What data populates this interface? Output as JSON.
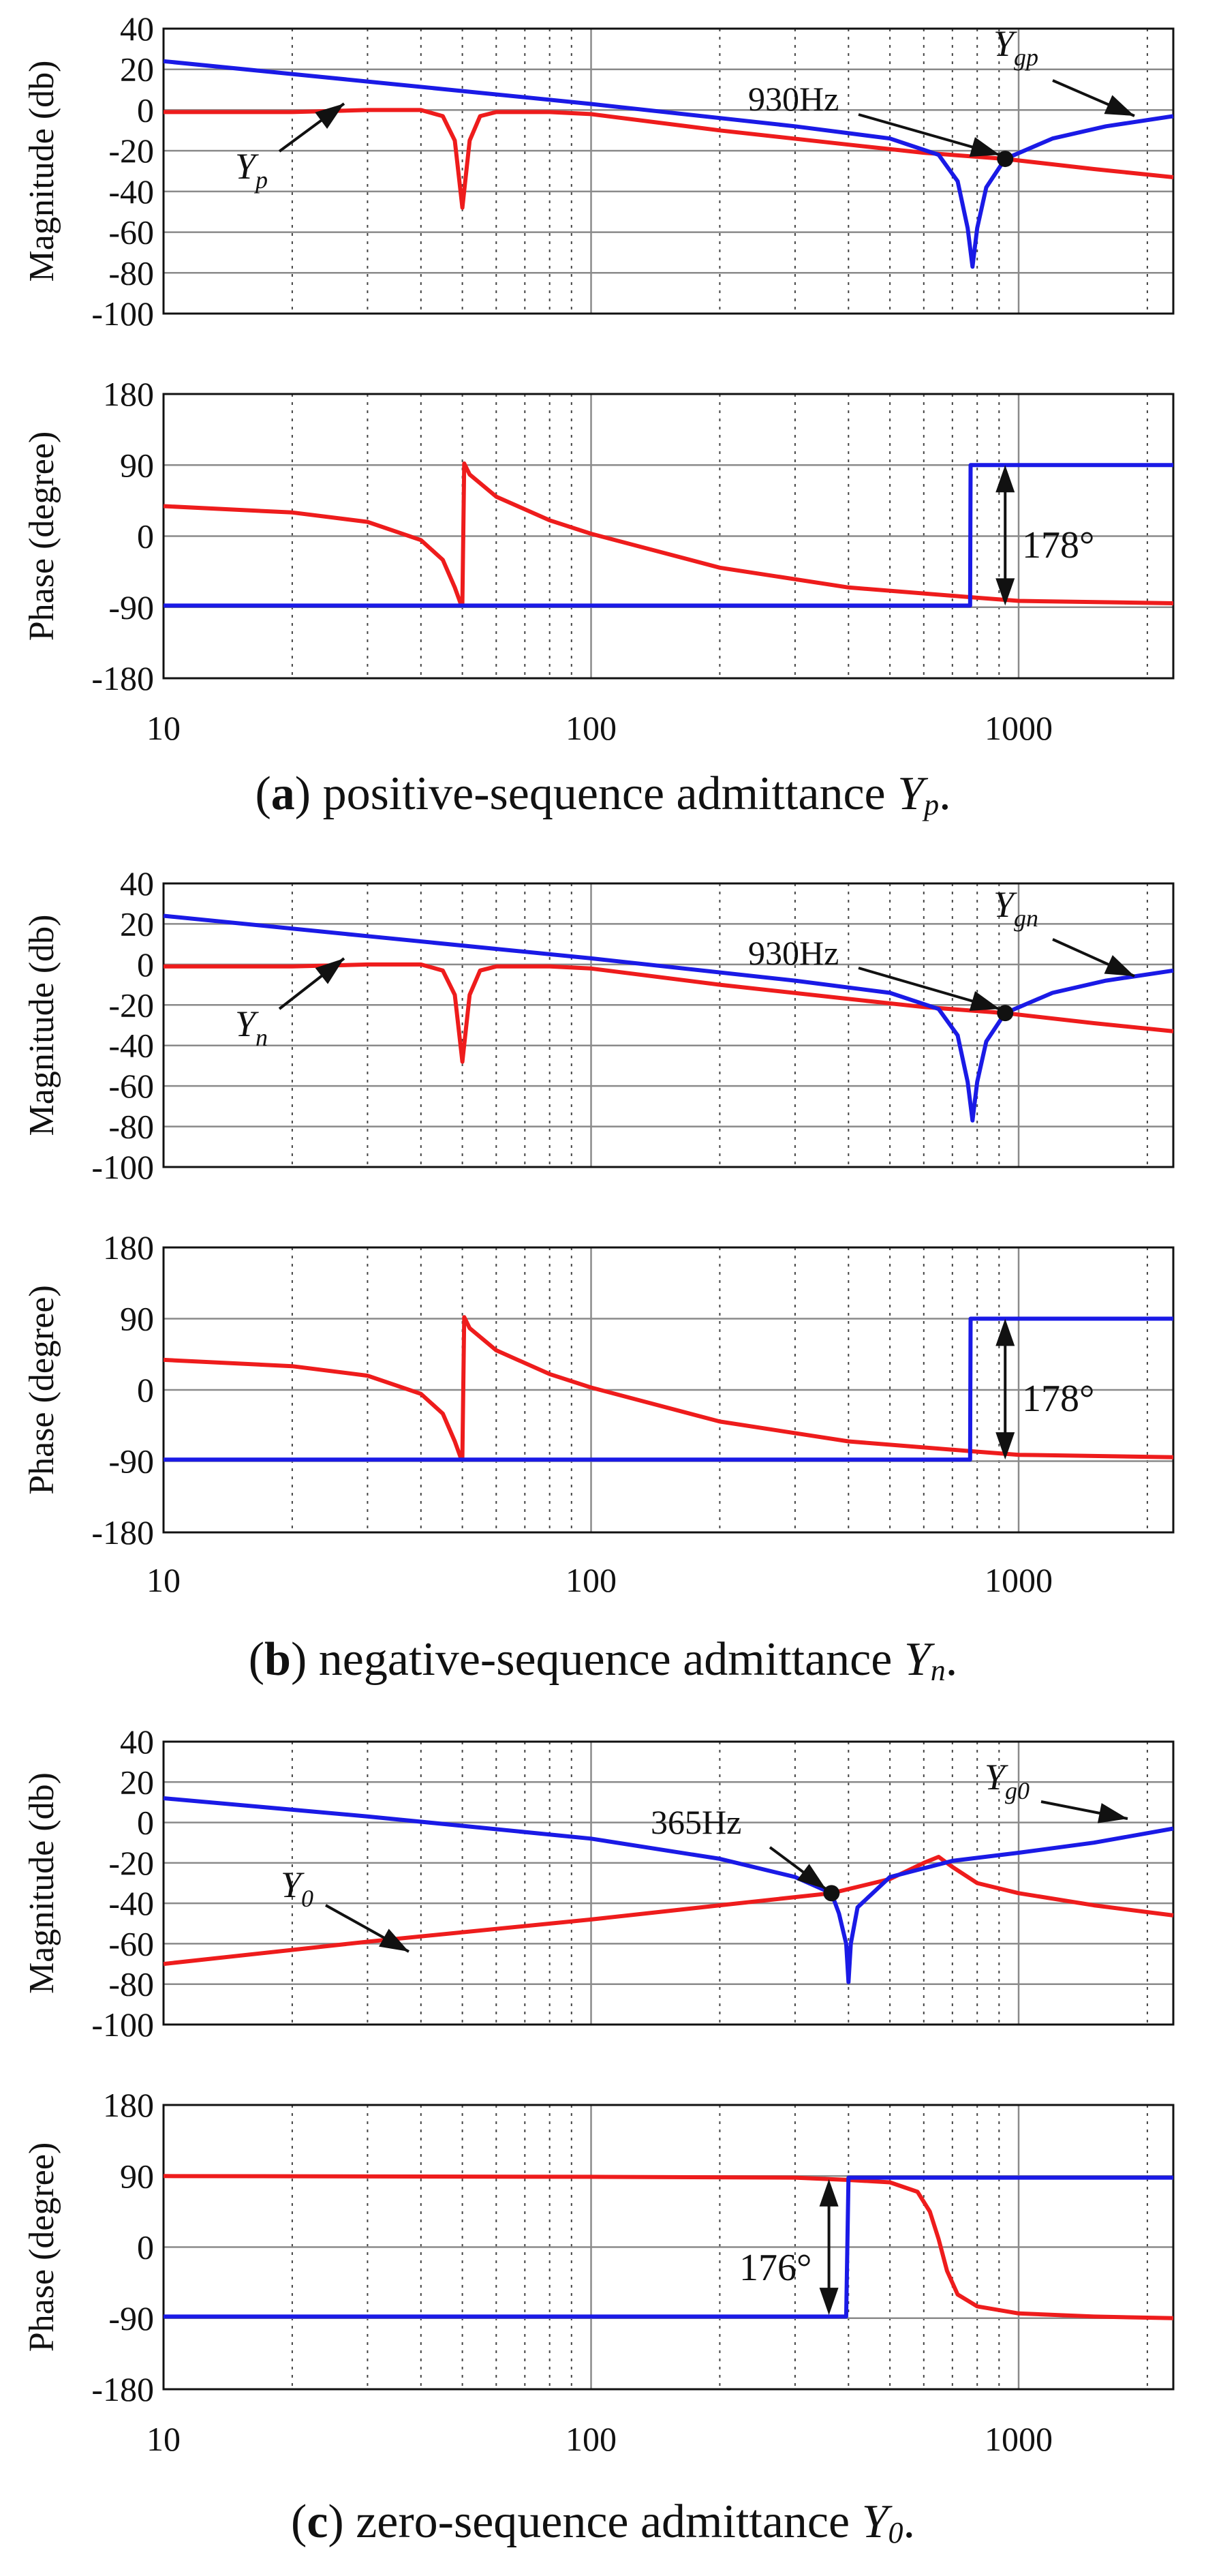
{
  "colors": {
    "red": "#ee1c1c",
    "blue": "#1a1ae6",
    "grid": "#8a8a8a",
    "minor": "#444444"
  },
  "axes": {
    "mag_label": "Magnitude (db)",
    "phase_label": "Phase (degree)",
    "x_ticks": [
      "10",
      "100",
      "1000"
    ],
    "mag_ticks": [
      "40",
      "20",
      "0",
      "-20",
      "-40",
      "-60",
      "-80",
      "-100"
    ],
    "phase_ticks": [
      "180",
      "90",
      "0",
      "-90",
      "-180"
    ]
  },
  "panels": [
    {
      "caption": {
        "letter": "a",
        "text": "positive-sequence admittance ",
        "sym": "Y",
        "sub": "p",
        "end": "."
      },
      "labels": {
        "red": "Y",
        "red_sub": "p",
        "blue": "Y",
        "blue_sub": "gp",
        "freq": "930Hz",
        "phase_diff": "178°"
      }
    },
    {
      "caption": {
        "letter": "b",
        "text": "negative-sequence admittance ",
        "sym": "Y",
        "sub": "n",
        "end": "."
      },
      "labels": {
        "red": "Y",
        "red_sub": "n",
        "blue": "Y",
        "blue_sub": "gn",
        "freq": "930Hz",
        "phase_diff": "178°"
      }
    },
    {
      "caption": {
        "letter": "c",
        "text": "zero-sequence admittance ",
        "sym": "Y",
        "sub": "0",
        "end": "."
      },
      "labels": {
        "red": "Y",
        "red_sub": "0",
        "blue": "Y",
        "blue_sub": "g0",
        "freq": "365Hz",
        "phase_diff": "176°"
      }
    }
  ],
  "chart_data": [
    {
      "panel": "a",
      "type": "line",
      "x_scale": "log",
      "xlim": [
        10,
        2300
      ],
      "magnitude": {
        "ylim": [
          -100,
          40
        ],
        "ylabel": "Magnitude (db)",
        "series": [
          {
            "name": "Yp",
            "color": "red",
            "points": [
              [
                10,
                -1
              ],
              [
                20,
                -1
              ],
              [
                30,
                0
              ],
              [
                40,
                0
              ],
              [
                45,
                -3
              ],
              [
                48,
                -15
              ],
              [
                50,
                -48
              ],
              [
                52,
                -15
              ],
              [
                55,
                -3
              ],
              [
                60,
                -1
              ],
              [
                80,
                -1
              ],
              [
                100,
                -2
              ],
              [
                200,
                -10
              ],
              [
                400,
                -17
              ],
              [
                600,
                -21
              ],
              [
                930,
                -24
              ],
              [
                1500,
                -29
              ],
              [
                2300,
                -33
              ]
            ]
          },
          {
            "name": "Ygp",
            "color": "blue",
            "points": [
              [
                10,
                24
              ],
              [
                30,
                14
              ],
              [
                100,
                3
              ],
              [
                300,
                -8
              ],
              [
                500,
                -14
              ],
              [
                650,
                -22
              ],
              [
                720,
                -35
              ],
              [
                760,
                -58
              ],
              [
                780,
                -77
              ],
              [
                800,
                -58
              ],
              [
                840,
                -38
              ],
              [
                930,
                -24
              ],
              [
                1200,
                -14
              ],
              [
                1600,
                -8
              ],
              [
                2300,
                -3
              ]
            ]
          }
        ],
        "marker": {
          "x": 930,
          "y": -24,
          "label": "930Hz"
        }
      },
      "phase": {
        "ylim": [
          -180,
          180
        ],
        "ylabel": "Phase (degree)",
        "series": [
          {
            "name": "Yp",
            "color": "red",
            "points": [
              [
                10,
                38
              ],
              [
                20,
                30
              ],
              [
                30,
                18
              ],
              [
                40,
                -5
              ],
              [
                45,
                -30
              ],
              [
                48,
                -65
              ],
              [
                49.5,
                -85
              ],
              [
                50,
                -85
              ],
              [
                50.5,
                92
              ],
              [
                52,
                78
              ],
              [
                60,
                50
              ],
              [
                80,
                20
              ],
              [
                100,
                3
              ],
              [
                200,
                -40
              ],
              [
                400,
                -65
              ],
              [
                800,
                -78
              ],
              [
                1000,
                -82
              ],
              [
                2300,
                -85
              ]
            ]
          },
          {
            "name": "Ygp",
            "color": "blue",
            "points": [
              [
                10,
                -88
              ],
              [
                100,
                -88
              ],
              [
                770,
                -88
              ],
              [
                772,
                90
              ],
              [
                2300,
                90
              ]
            ]
          }
        ],
        "annotation": {
          "x": 930,
          "y_from": -88,
          "y_to": 90,
          "label": "178°"
        }
      }
    },
    {
      "panel": "b",
      "type": "line",
      "x_scale": "log",
      "xlim": [
        10,
        2300
      ],
      "magnitude": {
        "ylim": [
          -100,
          40
        ],
        "ylabel": "Magnitude (db)",
        "series": [
          {
            "name": "Yn",
            "color": "red",
            "points": [
              [
                10,
                -1
              ],
              [
                20,
                -1
              ],
              [
                30,
                0
              ],
              [
                40,
                0
              ],
              [
                45,
                -3
              ],
              [
                48,
                -15
              ],
              [
                50,
                -48
              ],
              [
                52,
                -15
              ],
              [
                55,
                -3
              ],
              [
                60,
                -1
              ],
              [
                80,
                -1
              ],
              [
                100,
                -2
              ],
              [
                200,
                -10
              ],
              [
                400,
                -17
              ],
              [
                600,
                -21
              ],
              [
                930,
                -24
              ],
              [
                1500,
                -29
              ],
              [
                2300,
                -33
              ]
            ]
          },
          {
            "name": "Ygn",
            "color": "blue",
            "points": [
              [
                10,
                24
              ],
              [
                30,
                14
              ],
              [
                100,
                3
              ],
              [
                300,
                -8
              ],
              [
                500,
                -14
              ],
              [
                650,
                -22
              ],
              [
                720,
                -35
              ],
              [
                760,
                -58
              ],
              [
                780,
                -77
              ],
              [
                800,
                -58
              ],
              [
                840,
                -38
              ],
              [
                930,
                -24
              ],
              [
                1200,
                -14
              ],
              [
                1600,
                -8
              ],
              [
                2300,
                -3
              ]
            ]
          }
        ],
        "marker": {
          "x": 930,
          "y": -24,
          "label": "930Hz"
        }
      },
      "phase": {
        "ylim": [
          -180,
          180
        ],
        "ylabel": "Phase (degree)",
        "series": [
          {
            "name": "Yn",
            "color": "red",
            "points": [
              [
                10,
                38
              ],
              [
                20,
                30
              ],
              [
                30,
                18
              ],
              [
                40,
                -5
              ],
              [
                45,
                -30
              ],
              [
                48,
                -65
              ],
              [
                49.5,
                -85
              ],
              [
                50,
                -85
              ],
              [
                50.5,
                92
              ],
              [
                52,
                78
              ],
              [
                60,
                50
              ],
              [
                80,
                20
              ],
              [
                100,
                3
              ],
              [
                200,
                -40
              ],
              [
                400,
                -65
              ],
              [
                800,
                -78
              ],
              [
                1000,
                -82
              ],
              [
                2300,
                -85
              ]
            ]
          },
          {
            "name": "Ygn",
            "color": "blue",
            "points": [
              [
                10,
                -88
              ],
              [
                100,
                -88
              ],
              [
                770,
                -88
              ],
              [
                772,
                90
              ],
              [
                2300,
                90
              ]
            ]
          }
        ],
        "annotation": {
          "x": 930,
          "y_from": -88,
          "y_to": 90,
          "label": "178°"
        }
      }
    },
    {
      "panel": "c",
      "type": "line",
      "x_scale": "log",
      "xlim": [
        10,
        2300
      ],
      "magnitude": {
        "ylim": [
          -100,
          40
        ],
        "ylabel": "Magnitude (db)",
        "series": [
          {
            "name": "Y0",
            "color": "red",
            "points": [
              [
                10,
                -70
              ],
              [
                30,
                -59
              ],
              [
                100,
                -48
              ],
              [
                200,
                -41
              ],
              [
                365,
                -35
              ],
              [
                500,
                -28
              ],
              [
                600,
                -20
              ],
              [
                650,
                -17
              ],
              [
                700,
                -22
              ],
              [
                800,
                -30
              ],
              [
                1000,
                -35
              ],
              [
                1500,
                -41
              ],
              [
                2300,
                -46
              ]
            ]
          },
          {
            "name": "Yg0",
            "color": "blue",
            "points": [
              [
                10,
                12
              ],
              [
                30,
                3
              ],
              [
                100,
                -8
              ],
              [
                200,
                -18
              ],
              [
                300,
                -27
              ],
              [
                365,
                -35
              ],
              [
                380,
                -45
              ],
              [
                395,
                -60
              ],
              [
                400,
                -79
              ],
              [
                405,
                -60
              ],
              [
                420,
                -42
              ],
              [
                500,
                -27
              ],
              [
                700,
                -19
              ],
              [
                1000,
                -15
              ],
              [
                1500,
                -10
              ],
              [
                2300,
                -3
              ]
            ]
          }
        ],
        "marker": {
          "x": 365,
          "y": -35,
          "label": "365Hz"
        }
      },
      "phase": {
        "ylim": [
          -180,
          180
        ],
        "ylabel": "Phase (degree)",
        "series": [
          {
            "name": "Y0",
            "color": "red",
            "points": [
              [
                10,
                90
              ],
              [
                100,
                89
              ],
              [
                300,
                88
              ],
              [
                400,
                85
              ],
              [
                500,
                82
              ],
              [
                580,
                70
              ],
              [
                620,
                45
              ],
              [
                650,
                10
              ],
              [
                680,
                -30
              ],
              [
                720,
                -60
              ],
              [
                800,
                -75
              ],
              [
                1000,
                -84
              ],
              [
                1500,
                -88
              ],
              [
                2300,
                -90
              ]
            ]
          },
          {
            "name": "Yg0",
            "color": "blue",
            "points": [
              [
                10,
                -88
              ],
              [
                100,
                -88
              ],
              [
                395,
                -88
              ],
              [
                400,
                88
              ],
              [
                420,
                88
              ],
              [
                2300,
                88
              ]
            ]
          }
        ],
        "annotation": {
          "x": 360,
          "y_from": -86,
          "y_to": 86,
          "label": "176°"
        }
      }
    }
  ]
}
